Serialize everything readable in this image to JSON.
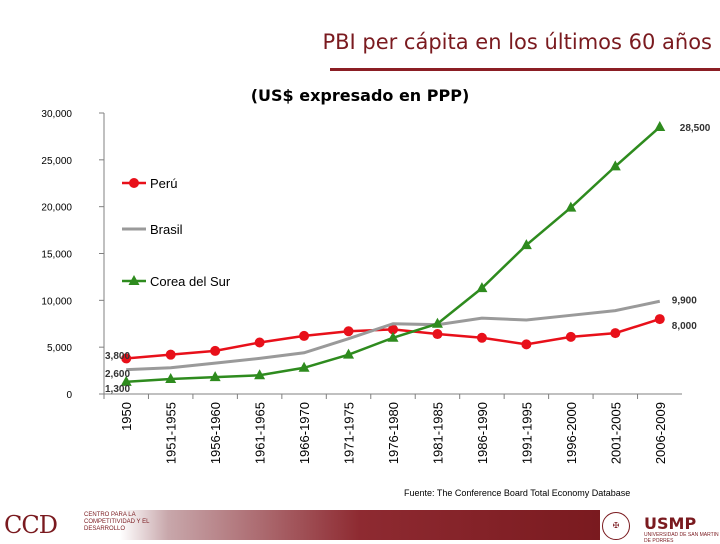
{
  "header": {
    "title": "PBI per cápita en los últimos 60 años",
    "subtitle": "(US$ expresado en PPP)"
  },
  "chart_data": {
    "type": "line",
    "title": "PBI per cápita en los últimos 60 años",
    "subtitle": "(US$ expresado en PPP)",
    "categories": [
      "1950",
      "1951-1955",
      "1956-1960",
      "1961-1965",
      "1966-1970",
      "1971-1975",
      "1976-1980",
      "1981-1985",
      "1986-1990",
      "1991-1995",
      "1996-2000",
      "2001-2005",
      "2006-2009"
    ],
    "ylim": [
      0,
      30000
    ],
    "yticks": [
      "0",
      "5,000",
      "10,000",
      "15,000",
      "20,000",
      "25,000",
      "30,000"
    ],
    "legend_position": "left",
    "grid": false,
    "series": [
      {
        "name": "Perú",
        "color": "#e8101a",
        "marker": "circle",
        "values": [
          3800,
          4200,
          4600,
          5500,
          6200,
          6700,
          6900,
          6400,
          6000,
          5300,
          6100,
          6500,
          8000
        ]
      },
      {
        "name": "Brasil",
        "color": "#9a9a9a",
        "marker": "none",
        "values": [
          2600,
          2800,
          3300,
          3800,
          4400,
          5900,
          7500,
          7400,
          8100,
          7900,
          8400,
          8900,
          9900
        ]
      },
      {
        "name": "Corea del Sur",
        "color": "#2e8b1e",
        "marker": "triangle",
        "values": [
          1300,
          1600,
          1800,
          2000,
          2800,
          4200,
          6000,
          7500,
          11300,
          15900,
          19900,
          24300,
          28500
        ]
      }
    ],
    "annotations": [
      {
        "text": "28,500",
        "series": "Corea del Sur",
        "point": "end"
      },
      {
        "text": "9,900",
        "series": "Brasil",
        "point": "end"
      },
      {
        "text": "8,000",
        "series": "Perú",
        "point": "end"
      },
      {
        "text": "3,800",
        "series": "Perú",
        "point": "start"
      },
      {
        "text": "2,600",
        "series": "Brasil",
        "point": "start"
      },
      {
        "text": "1,300",
        "series": "Corea del Sur",
        "point": "start"
      }
    ]
  },
  "footer": {
    "source": "Fuente: The Conference Board Total Economy Database",
    "left_logo_text": "CCD",
    "left_logo_caption": "CENTRO PARA LA COMPETITIVIDAD Y EL DESARROLLO",
    "right_logo_text": "USMP",
    "right_logo_caption": "UNIVERSIDAD DE SAN MARTIN DE PORRES"
  },
  "colors": {
    "brand": "#7a1a1f",
    "axis": "#808080"
  }
}
